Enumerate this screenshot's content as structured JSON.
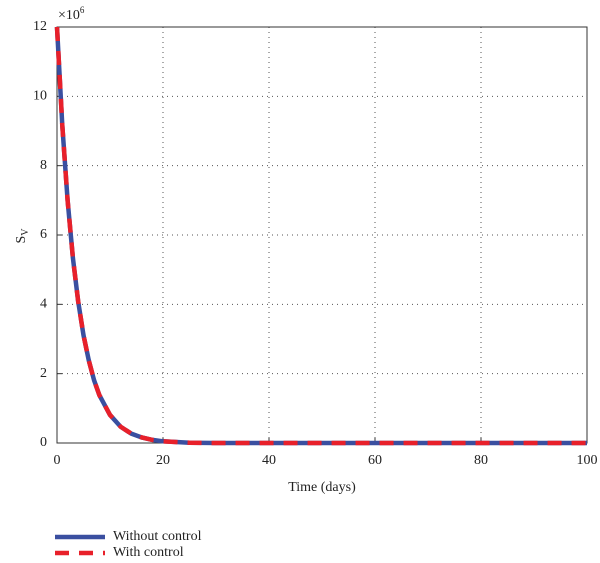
{
  "chart_data": {
    "type": "line",
    "x_label": "Time (days)",
    "y_label": "S",
    "y_label_sub": "V",
    "y_multiplier": "×10",
    "y_multiplier_exp": "6",
    "x": [
      0,
      1,
      2,
      3,
      4,
      5,
      6,
      7,
      8,
      10,
      12,
      14,
      16,
      18,
      20,
      25,
      30,
      40,
      50,
      60,
      70,
      80,
      90,
      100
    ],
    "series": [
      {
        "name": "Without control",
        "color": "#3a4fa0",
        "values": [
          12,
          9.16,
          7.0,
          5.34,
          4.08,
          3.11,
          2.38,
          1.81,
          1.38,
          0.81,
          0.47,
          0.27,
          0.16,
          0.09,
          0.05,
          0.01,
          0,
          0,
          0,
          0,
          0,
          0,
          0,
          0
        ]
      },
      {
        "name": "With control",
        "color": "#e8202a",
        "dashed": true,
        "values": [
          12,
          9.16,
          7.0,
          5.34,
          4.08,
          3.11,
          2.38,
          1.81,
          1.38,
          0.81,
          0.47,
          0.27,
          0.16,
          0.09,
          0.05,
          0.01,
          0,
          0,
          0,
          0,
          0,
          0,
          0,
          0
        ]
      }
    ],
    "xlim": [
      0,
      100
    ],
    "xticks": [
      0,
      20,
      40,
      60,
      80,
      100
    ],
    "ylim": [
      0,
      12
    ],
    "yticks": [
      0,
      2,
      4,
      6,
      8,
      10,
      12
    ],
    "grid": true,
    "legend": "bottom-left"
  }
}
